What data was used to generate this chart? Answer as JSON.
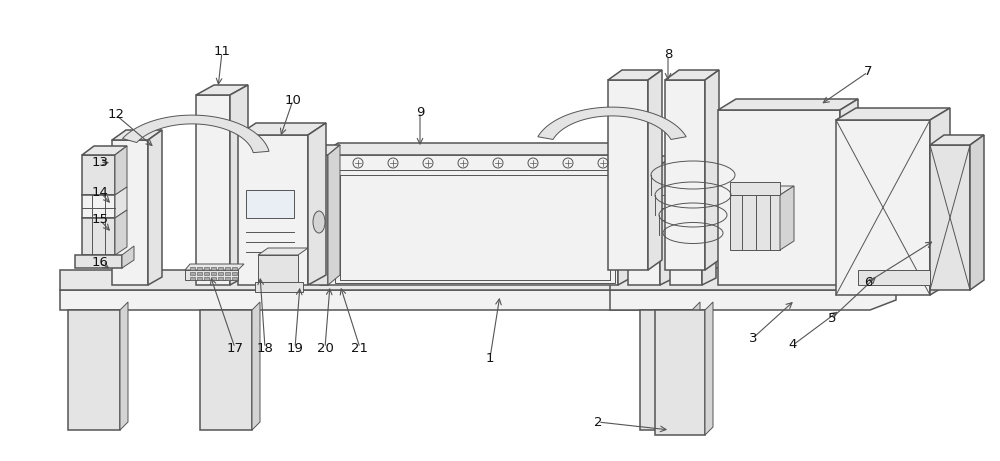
{
  "bg_color": "#ffffff",
  "line_color": "#555555",
  "label_color": "#111111",
  "fig_width": 10.0,
  "fig_height": 4.61,
  "label_fs": 9.5,
  "lw_main": 1.1,
  "lw_thin": 0.7,
  "face_light": "#f2f2f2",
  "face_mid": "#e4e4e4",
  "face_dark": "#d4d4d4",
  "face_top": "#e8e8e8",
  "face_blue": "#e8eef4"
}
